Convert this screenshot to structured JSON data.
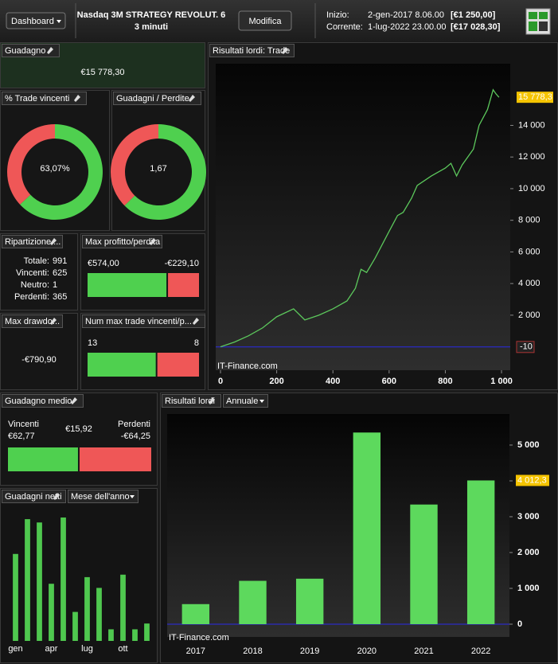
{
  "header": {
    "dashboard_button": "Dashboard",
    "strategy": "Nasdaq 3M STRATEGY REVOLUT. 6",
    "timeframe": "3 minuti",
    "edit_button": "Modifica",
    "start_label": "Inizio:",
    "start_date": "2-gen-2017 8.06.00",
    "start_capital": "[€1 250,00]",
    "current_label": "Corrente:",
    "current_date": "1-lug-2022 23.00.00",
    "current_capital": "[€17 028,30]"
  },
  "panels": {
    "profit": {
      "title": "Guadagno",
      "value": "€15 778,30"
    },
    "win_rate": {
      "title": "% Trade vincenti",
      "value": 63.07,
      "label": "63,07%",
      "win_color": "#4fd04f",
      "loss_color": "#ef5757"
    },
    "profit_factor": {
      "title": "Guadagni / Perdite",
      "value": 1.67,
      "label": "1,67",
      "win_color": "#4fd04f",
      "loss_color": "#ef5757"
    },
    "breakdown": {
      "title": "Ripartizione ...",
      "rows": [
        {
          "label": "Totale:",
          "value": 991,
          "color": "#ffffff"
        },
        {
          "label": "Vincenti:",
          "value": 625,
          "color": "#4fd04f"
        },
        {
          "label": "Neutro:",
          "value": 1,
          "color": "#ffffff"
        },
        {
          "label": "Perdenti:",
          "value": 365,
          "color": "#ef5757"
        }
      ]
    },
    "max_profit_loss": {
      "title": "Max profitto/perdita",
      "win": 574,
      "win_label": "€574,00",
      "loss": -229.1,
      "loss_label": "-€229,10"
    },
    "max_drawdown": {
      "title": "Max drawdo...",
      "value": "-€790,90"
    },
    "max_streak": {
      "title": "Num max trade vincenti/p...",
      "win": 13,
      "loss": 8
    },
    "average": {
      "title": "Guadagno medio",
      "win_label": "Vincenti",
      "win": 62.77,
      "win_value_label": "€62,77",
      "value": "€15,92",
      "loss_label": "Perdenti",
      "loss": -64.25,
      "loss_value_label": "-€64,25"
    }
  },
  "chart_data": [
    {
      "type": "line",
      "title": "Risultati lordi: Trade",
      "watermark": "IT-Finance.com",
      "x": [
        0,
        50,
        100,
        150,
        200,
        260,
        300,
        350,
        400,
        450,
        480,
        500,
        520,
        550,
        600,
        630,
        650,
        680,
        700,
        750,
        800,
        820,
        840,
        860,
        900,
        920,
        950,
        970,
        980,
        991
      ],
      "series": [
        {
          "color": "#5cc85c",
          "values": [
            0,
            300,
            700,
            1200,
            1900,
            2400,
            1700,
            2000,
            2400,
            2900,
            3700,
            4900,
            4700,
            5600,
            7300,
            8300,
            8500,
            9400,
            10200,
            10800,
            11300,
            11600,
            10800,
            11500,
            12500,
            14000,
            15000,
            16250,
            16000,
            15778.3
          ],
          "value_labels": [
            null,
            null,
            null,
            null,
            null,
            null,
            null,
            null,
            null,
            null,
            null,
            null,
            null,
            null,
            null,
            null,
            null,
            null,
            null,
            null,
            null,
            null,
            null,
            null,
            null,
            null,
            null,
            null,
            null,
            "15 778,3"
          ]
        }
      ],
      "reference_line": {
        "value": -10,
        "label": "-10",
        "color": "#2a2ae8"
      },
      "xlim": [
        -17,
        1031
      ],
      "ylim": [
        -1480,
        17900
      ],
      "xticks": [
        0,
        200,
        400,
        600,
        800,
        {
          "value": 1000,
          "label": "1 000"
        }
      ],
      "yticks": [
        {
          "value": 2000,
          "label": "2 000"
        },
        {
          "value": 4000,
          "label": "4 000"
        },
        {
          "value": 6000,
          "label": "6 000"
        },
        {
          "value": 8000,
          "label": "8 000"
        },
        {
          "value": 10000,
          "label": "10 000"
        },
        {
          "value": 12000,
          "label": "12 000"
        },
        {
          "value": 14000,
          "label": "14 000"
        }
      ]
    },
    {
      "type": "bar",
      "title": "Risultati lordi",
      "period": "Annuale",
      "watermark": "IT-Finance.com",
      "color": "#5dd95d",
      "baseline_color": "#2a2ae8",
      "categories": [
        "2017",
        "2018",
        "2019",
        "2020",
        "2021",
        "2022"
      ],
      "values": [
        560,
        1210,
        1270,
        5350,
        3340,
        4012.3
      ],
      "value_labels": [
        null,
        null,
        null,
        null,
        null,
        "4 012,3"
      ],
      "ylim": [
        -356,
        5867
      ],
      "yticks": [
        0,
        {
          "value": 1000,
          "label": "1 000"
        },
        {
          "value": 2000,
          "label": "2 000"
        },
        {
          "value": 3000,
          "label": "3 000"
        },
        {
          "value": 4000,
          "label": "4 000"
        },
        {
          "value": 5000,
          "label": "5 000"
        }
      ]
    },
    {
      "type": "bar",
      "title": "Guadagni netti",
      "period": "Mese dell'anno",
      "color": "#4fc84f",
      "categories": [
        "gen",
        null,
        null,
        "apr",
        null,
        null,
        "lug",
        null,
        null,
        "ott",
        null,
        null
      ],
      "values": [
        105,
        147,
        143,
        69,
        149,
        35,
        77,
        64,
        14,
        80,
        14,
        21
      ]
    }
  ]
}
